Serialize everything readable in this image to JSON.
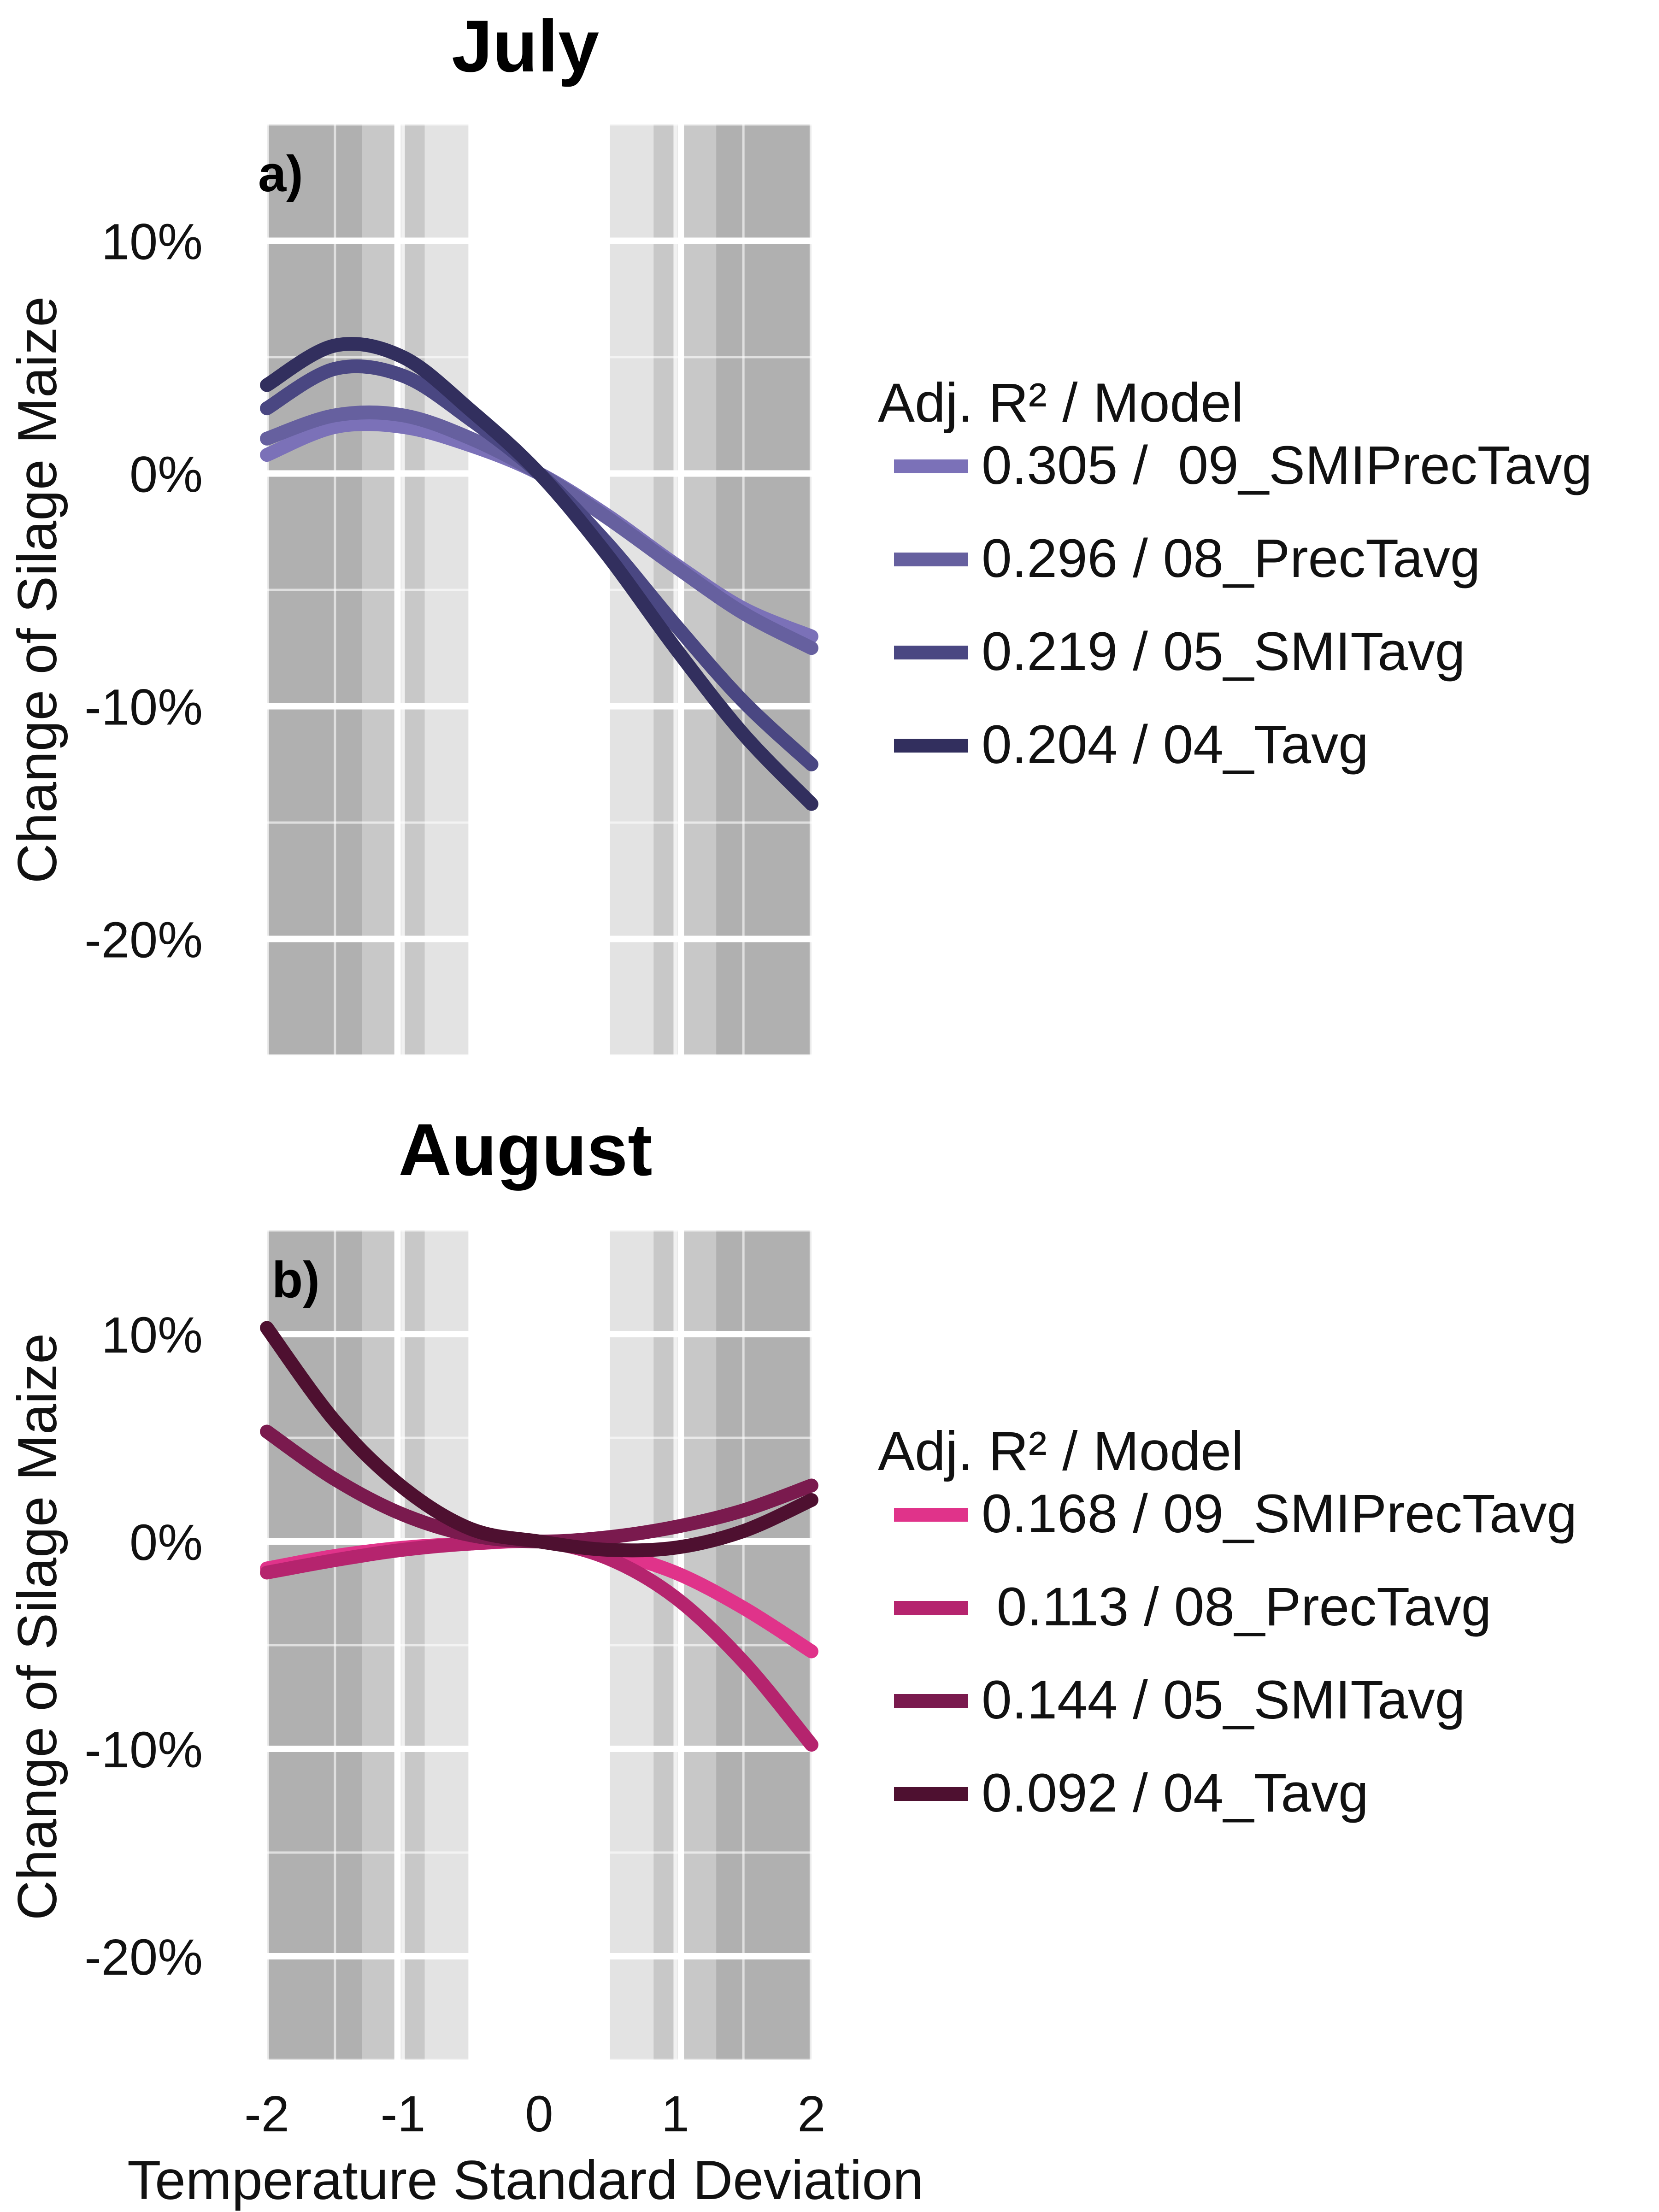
{
  "chart_data": [
    {
      "type": "line",
      "title": "July",
      "panel_label": "a)",
      "xlabel": "Temperature Standard Deviation",
      "ylabel": "Change of Silage Maize",
      "xlim": [
        -2.2,
        2.2
      ],
      "ylim": [
        -25,
        15
      ],
      "x_ticks": [
        -2,
        -1,
        0,
        1,
        2
      ],
      "y_ticks": [
        10,
        0,
        -10,
        -20
      ],
      "y_tick_labels": [
        "10%",
        "0%",
        "-10%",
        "-20%"
      ],
      "shaded_bands": [
        {
          "x0": -2,
          "x1": -1.3,
          "shade": "dark"
        },
        {
          "x0": -1.3,
          "x1": -1.04,
          "shade": "mid"
        },
        {
          "x0": -1.04,
          "x1": -0.84,
          "shade": "mid"
        },
        {
          "x0": -0.84,
          "x1": -0.52,
          "shade": "light"
        },
        {
          "x0": 0.52,
          "x1": 0.84,
          "shade": "light"
        },
        {
          "x0": 0.84,
          "x1": 1.04,
          "shade": "mid"
        },
        {
          "x0": 1.04,
          "x1": 1.3,
          "shade": "mid"
        },
        {
          "x0": 1.3,
          "x1": 2,
          "shade": "dark"
        }
      ],
      "legend_title": "Adj. R² / Model",
      "series": [
        {
          "name": "0.305 /  09_SMIPrecTavg",
          "color": "#7b71b8",
          "x": [
            -2,
            -1.5,
            -1,
            -0.5,
            0,
            0.5,
            1,
            1.5,
            2
          ],
          "values": [
            0.8,
            2.0,
            2.0,
            1.2,
            0.0,
            -1.8,
            -3.9,
            -5.8,
            -7.0
          ]
        },
        {
          "name": "0.296 / 08_PrecTavg",
          "color": "#66609f",
          "x": [
            -2,
            -1.5,
            -1,
            -0.5,
            0,
            0.5,
            1,
            1.5,
            2
          ],
          "values": [
            1.5,
            2.5,
            2.5,
            1.5,
            0.0,
            -1.9,
            -4.0,
            -6.0,
            -7.5
          ]
        },
        {
          "name": "0.219 / 05_SMITavg",
          "color": "#4a4782",
          "x": [
            -2,
            -1.5,
            -1,
            -0.5,
            0,
            0.5,
            1,
            1.5,
            2
          ],
          "values": [
            2.8,
            4.5,
            4.2,
            2.3,
            0.0,
            -3.0,
            -6.5,
            -9.8,
            -12.5
          ]
        },
        {
          "name": "0.204 / 04_Tavg",
          "color": "#322f5e",
          "x": [
            -2,
            -1.5,
            -1,
            -0.5,
            0,
            0.5,
            1,
            1.5,
            2
          ],
          "values": [
            3.8,
            5.5,
            5.0,
            2.7,
            0.0,
            -3.5,
            -7.5,
            -11.2,
            -14.2
          ]
        }
      ]
    },
    {
      "type": "line",
      "title": "August",
      "panel_label": "b)",
      "xlabel": "Temperature Standard Deviation",
      "ylabel": "Change of Silage Maize",
      "xlim": [
        -2.2,
        2.2
      ],
      "ylim": [
        -25,
        15
      ],
      "x_ticks": [
        -2,
        -1,
        0,
        1,
        2
      ],
      "x_tick_labels": [
        "-2",
        "-1",
        "0",
        "1",
        "2"
      ],
      "y_ticks": [
        10,
        0,
        -10,
        -20
      ],
      "y_tick_labels": [
        "10%",
        "0%",
        "-10%",
        "-20%"
      ],
      "shaded_bands": [
        {
          "x0": -2,
          "x1": -1.3,
          "shade": "dark"
        },
        {
          "x0": -1.3,
          "x1": -1.04,
          "shade": "mid"
        },
        {
          "x0": -1.04,
          "x1": -0.84,
          "shade": "mid"
        },
        {
          "x0": -0.84,
          "x1": -0.52,
          "shade": "light"
        },
        {
          "x0": 0.52,
          "x1": 0.84,
          "shade": "light"
        },
        {
          "x0": 0.84,
          "x1": 1.04,
          "shade": "mid"
        },
        {
          "x0": 1.04,
          "x1": 1.3,
          "shade": "mid"
        },
        {
          "x0": 1.3,
          "x1": 2,
          "shade": "dark"
        }
      ],
      "legend_title": "Adj. R² / Model",
      "series": [
        {
          "name": "0.168 / 09_SMIPrecTavg",
          "color": "#e0338a",
          "x": [
            -2,
            -1.5,
            -1,
            -0.5,
            0,
            0.5,
            1,
            1.5,
            2
          ],
          "values": [
            -1.3,
            -0.7,
            -0.3,
            -0.1,
            0.0,
            -0.5,
            -1.5,
            -3.2,
            -5.3
          ]
        },
        {
          "name": " 0.113 / 08_PrecTavg",
          "color": "#b5246e",
          "x": [
            -2,
            -1.5,
            -1,
            -0.5,
            0,
            0.5,
            1,
            1.5,
            2
          ],
          "values": [
            -1.5,
            -0.9,
            -0.4,
            -0.1,
            0.0,
            -0.8,
            -2.7,
            -5.8,
            -9.8
          ]
        },
        {
          "name": "0.144 / 05_SMITavg",
          "color": "#7a1a4e",
          "x": [
            -2,
            -1.5,
            -1,
            -0.5,
            0,
            0.5,
            1,
            1.5,
            2
          ],
          "values": [
            5.3,
            3.0,
            1.3,
            0.3,
            0.0,
            0.2,
            0.7,
            1.5,
            2.7
          ]
        },
        {
          "name": "0.092 / 04_Tavg",
          "color": "#4e1030",
          "x": [
            -2,
            -1.5,
            -1,
            -0.5,
            0,
            0.5,
            1,
            1.5,
            2
          ],
          "values": [
            10.3,
            5.8,
            2.6,
            0.6,
            0.0,
            -0.4,
            -0.3,
            0.5,
            2.0
          ]
        }
      ]
    }
  ],
  "colors": {
    "band_dark": "#b0b0b0",
    "band_mid": "#c8c8c8",
    "band_light": "#e3e3e3",
    "grid": "#ffffff"
  }
}
